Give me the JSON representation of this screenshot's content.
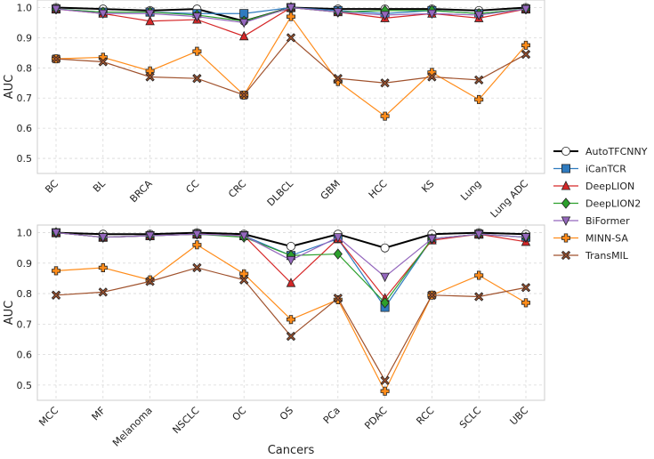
{
  "chart_data": [
    {
      "type": "line",
      "ylabel": "AUC",
      "categories": [
        "BC",
        "BL",
        "BRCA",
        "CC",
        "CRC",
        "DLBCL",
        "GBM",
        "HCC",
        "KS",
        "Lung",
        "Lung ADC"
      ],
      "ylim": [
        0.45,
        1.025
      ],
      "yticks": [
        0.5,
        0.6,
        0.7,
        0.8,
        0.9,
        {
          "value": 1,
          "label": "1.0"
        }
      ],
      "grid": true,
      "series": [
        {
          "name": "AutoTFCNNY",
          "color": "#000000",
          "marker": "o",
          "marker_fill": "#ffffff",
          "values": [
            1.0,
            0.995,
            0.99,
            0.995,
            0.955,
            1.0,
            0.995,
            0.995,
            0.995,
            0.99,
            1.0
          ]
        },
        {
          "name": "iCanTCR",
          "color": "#2f7bbf",
          "marker": "s",
          "values": [
            0.995,
            0.985,
            0.985,
            0.98,
            0.98,
            1.0,
            0.99,
            0.98,
            0.99,
            0.98,
            0.995
          ]
        },
        {
          "name": "DeepLION",
          "color": "#d62728",
          "marker": "^",
          "values": [
            0.995,
            0.98,
            0.955,
            0.96,
            0.905,
            1.0,
            0.985,
            0.965,
            0.98,
            0.965,
            0.995
          ]
        },
        {
          "name": "DeepLION2",
          "color": "#2ca02c",
          "marker": "D",
          "values": [
            0.995,
            0.985,
            0.985,
            0.975,
            0.955,
            1.0,
            0.985,
            0.99,
            0.99,
            0.98,
            0.995
          ]
        },
        {
          "name": "BiFormer",
          "color": "#9467bd",
          "marker": "v",
          "values": [
            0.995,
            0.98,
            0.98,
            0.97,
            0.95,
            1.0,
            0.985,
            0.975,
            0.98,
            0.975,
            0.995
          ]
        },
        {
          "name": "MINN-SA",
          "color": "#ff8c1a",
          "marker": "P",
          "values": [
            0.83,
            0.835,
            0.79,
            0.855,
            0.71,
            0.97,
            0.755,
            0.64,
            0.785,
            0.695,
            0.875
          ]
        },
        {
          "name": "TransMIL",
          "color": "#a0522d",
          "marker": "X",
          "values": [
            0.83,
            0.82,
            0.77,
            0.765,
            0.71,
            0.9,
            0.765,
            0.75,
            0.77,
            0.76,
            0.845
          ]
        }
      ]
    },
    {
      "type": "line",
      "ylabel": "AUC",
      "xlabel": "Cancers",
      "categories": [
        "MCC",
        "MF",
        "Melanoma",
        "NSCLC",
        "OC",
        "OS",
        "PCa",
        "PDAC",
        "RCC",
        "SCLC",
        "UBC"
      ],
      "ylim": [
        0.45,
        1.025
      ],
      "yticks": [
        0.5,
        0.6,
        0.7,
        0.8,
        0.9,
        {
          "value": 1,
          "label": "1.0"
        }
      ],
      "grid": true,
      "series": [
        {
          "color": "#000000",
          "marker": "o",
          "marker_fill": "#ffffff",
          "values": [
            1.0,
            0.995,
            0.995,
            1.0,
            0.995,
            0.955,
            0.995,
            0.95,
            0.995,
            1.0,
            0.995
          ]
        },
        {
          "color": "#2f7bbf",
          "marker": "s",
          "values": [
            1.0,
            0.985,
            0.99,
            0.995,
            0.99,
            0.925,
            0.98,
            0.755,
            0.98,
            0.995,
            0.985
          ]
        },
        {
          "color": "#d62728",
          "marker": "^",
          "values": [
            1.0,
            0.985,
            0.99,
            0.995,
            0.99,
            0.835,
            0.98,
            0.785,
            0.975,
            0.995,
            0.97
          ]
        },
        {
          "color": "#2ca02c",
          "marker": "D",
          "values": [
            1.0,
            0.985,
            0.99,
            0.995,
            0.985,
            0.925,
            0.93,
            0.77,
            0.98,
            0.995,
            0.985
          ]
        },
        {
          "color": "#9467bd",
          "marker": "v",
          "values": [
            1.0,
            0.985,
            0.99,
            0.995,
            0.99,
            0.91,
            0.985,
            0.855,
            0.98,
            0.995,
            0.985
          ]
        },
        {
          "color": "#ff8c1a",
          "marker": "P",
          "values": [
            0.875,
            0.885,
            0.845,
            0.96,
            0.865,
            0.715,
            0.78,
            0.48,
            0.795,
            0.86,
            0.77
          ]
        },
        {
          "color": "#a0522d",
          "marker": "X",
          "values": [
            0.795,
            0.805,
            0.84,
            0.885,
            0.845,
            0.66,
            0.785,
            0.515,
            0.795,
            0.79,
            0.82
          ]
        }
      ]
    }
  ]
}
